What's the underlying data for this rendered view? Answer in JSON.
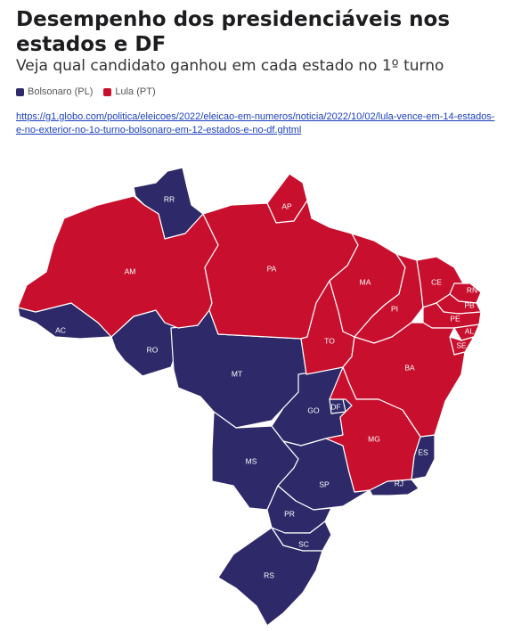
{
  "header": {
    "title": "Desempenho dos presidenciáveis nos estados e DF",
    "subtitle": "Veja qual candidato ganhou em cada estado no 1º turno"
  },
  "legend": [
    {
      "label": "Bolsonaro (PL)",
      "color": "#2e2a69"
    },
    {
      "label": "Lula (PT)",
      "color": "#c8102e"
    }
  ],
  "source_link": "https://g1.globo.com/politica/eleicoes/2022/eleicao-em-numeros/noticia/2022/10/02/lula-vence-em-14-estados-e-no-exterior-no-1o-turno-bolsonaro-em-12-estados-e-no-df.ghtml",
  "colors": {
    "bolsonaro": "#2e2a69",
    "lula": "#c8102e"
  },
  "states": [
    {
      "code": "RR",
      "winner": "bolsonaro"
    },
    {
      "code": "AP",
      "winner": "lula"
    },
    {
      "code": "AM",
      "winner": "lula"
    },
    {
      "code": "PA",
      "winner": "lula"
    },
    {
      "code": "MA",
      "winner": "lula"
    },
    {
      "code": "CE",
      "winner": "lula"
    },
    {
      "code": "RN",
      "winner": "lula"
    },
    {
      "code": "PB",
      "winner": "lula"
    },
    {
      "code": "PE",
      "winner": "lula"
    },
    {
      "code": "PI",
      "winner": "lula"
    },
    {
      "code": "AL",
      "winner": "lula"
    },
    {
      "code": "SE",
      "winner": "lula"
    },
    {
      "code": "AC",
      "winner": "bolsonaro"
    },
    {
      "code": "RO",
      "winner": "bolsonaro"
    },
    {
      "code": "TO",
      "winner": "lula"
    },
    {
      "code": "BA",
      "winner": "lula"
    },
    {
      "code": "MT",
      "winner": "bolsonaro"
    },
    {
      "code": "GO",
      "winner": "bolsonaro"
    },
    {
      "code": "DF",
      "winner": "bolsonaro"
    },
    {
      "code": "MG",
      "winner": "lula"
    },
    {
      "code": "ES",
      "winner": "bolsonaro"
    },
    {
      "code": "MS",
      "winner": "bolsonaro"
    },
    {
      "code": "SP",
      "winner": "bolsonaro"
    },
    {
      "code": "RJ",
      "winner": "bolsonaro"
    },
    {
      "code": "PR",
      "winner": "bolsonaro"
    },
    {
      "code": "SC",
      "winner": "bolsonaro"
    },
    {
      "code": "RS",
      "winner": "bolsonaro"
    }
  ]
}
